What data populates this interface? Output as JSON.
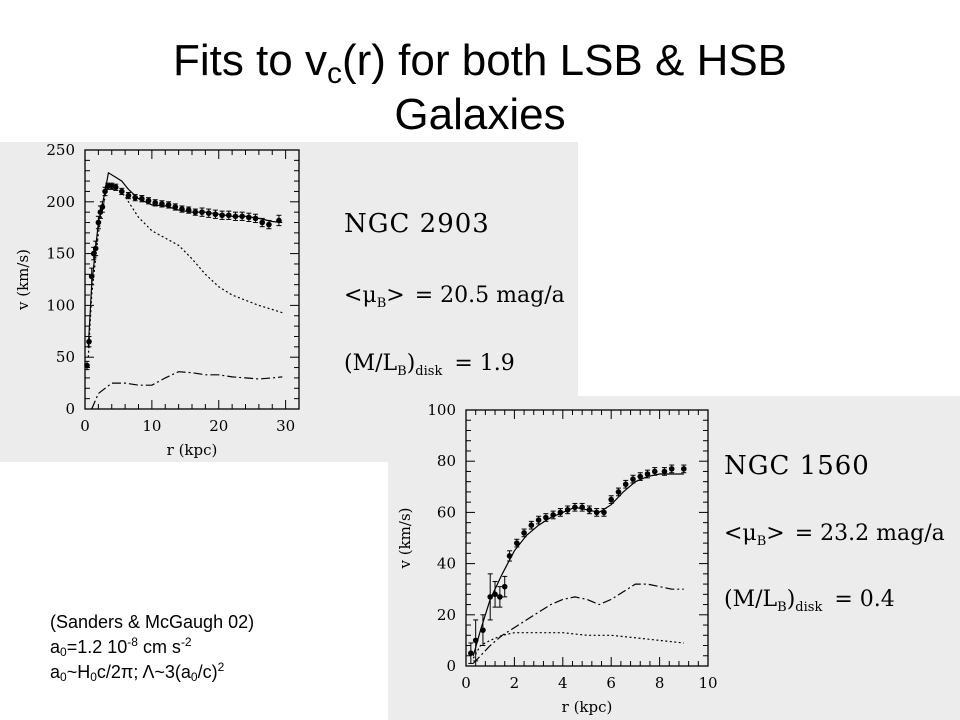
{
  "title": {
    "part1": "Fits to v",
    "sub": "c",
    "part2": "(r) for both LSB & HSB",
    "line2": "Galaxies"
  },
  "note": {
    "citation": "(Sanders & McGaugh 02)",
    "line2": {
      "a": "a",
      "sub0": "0",
      "eq": "=1.2 10",
      "exp1": "-8",
      "unit": " cm s",
      "exp2": "-2"
    },
    "line3": {
      "a": "a",
      "sub0": "0",
      "tilde": "~H",
      "subH": "0",
      "rest": "c/2π; Λ~3(a",
      "sub0b": "0",
      "c": "/c)",
      "exp": "2"
    }
  },
  "chart_data": [
    {
      "type": "scatter",
      "galaxy": "NGC 2903",
      "mu_label": "= 20.5 mag/a",
      "ml_label": "= 1.9",
      "mu_sym": "<μ",
      "mu_sub": "B",
      "mu_close": ">",
      "ml_sym": "(M/L",
      "ml_sub_b": "B",
      "ml_close": ")",
      "ml_sub_disk": "disk",
      "xlabel": "r  (kpc)",
      "ylabel": "v  (km/s)",
      "xlim": [
        0,
        32
      ],
      "ylim": [
        0,
        250
      ],
      "xticks": [
        0,
        10,
        20,
        30
      ],
      "yticks": [
        0,
        50,
        100,
        150,
        200,
        250
      ],
      "points": [
        [
          0.3,
          42,
          4
        ],
        [
          0.6,
          65,
          5
        ],
        [
          1.0,
          128,
          8
        ],
        [
          1.3,
          150,
          6
        ],
        [
          1.6,
          155,
          7
        ],
        [
          2.0,
          180,
          6
        ],
        [
          2.3,
          190,
          6
        ],
        [
          2.6,
          195,
          5
        ],
        [
          3.0,
          210,
          4
        ],
        [
          3.4,
          215,
          3
        ],
        [
          4.0,
          215,
          3
        ],
        [
          4.6,
          214,
          3
        ],
        [
          5.5,
          210,
          3
        ],
        [
          6.5,
          206,
          3
        ],
        [
          7.5,
          204,
          3
        ],
        [
          8.5,
          203,
          3
        ],
        [
          9.5,
          201,
          3
        ],
        [
          10.5,
          199,
          3
        ],
        [
          11.5,
          198,
          3
        ],
        [
          12.5,
          197,
          3
        ],
        [
          13.5,
          195,
          3
        ],
        [
          14.5,
          193,
          3
        ],
        [
          15.5,
          192,
          3
        ],
        [
          16.5,
          190,
          3
        ],
        [
          17.5,
          190,
          4
        ],
        [
          18.5,
          189,
          4
        ],
        [
          19.5,
          188,
          4
        ],
        [
          20.5,
          187,
          4
        ],
        [
          21.5,
          187,
          4
        ],
        [
          22.5,
          186,
          4
        ],
        [
          23.5,
          186,
          4
        ],
        [
          24.5,
          185,
          4
        ],
        [
          25.5,
          184,
          4
        ],
        [
          26.5,
          180,
          4
        ],
        [
          27.5,
          178,
          4
        ],
        [
          29.0,
          182,
          5
        ]
      ],
      "total_curve": [
        [
          0.5,
          60
        ],
        [
          1,
          120
        ],
        [
          2,
          180
        ],
        [
          3,
          210
        ],
        [
          3.5,
          228
        ],
        [
          4.5,
          224
        ],
        [
          5.5,
          220
        ],
        [
          6.5,
          212
        ],
        [
          8,
          203
        ],
        [
          10,
          197
        ],
        [
          12,
          196
        ],
        [
          14,
          192
        ],
        [
          16,
          190
        ],
        [
          18,
          190
        ],
        [
          20,
          188
        ],
        [
          22,
          186
        ],
        [
          24,
          186
        ],
        [
          26,
          184
        ],
        [
          28,
          181
        ],
        [
          29.5,
          180
        ]
      ],
      "disk_curve": [
        [
          0.5,
          50
        ],
        [
          1,
          110
        ],
        [
          2,
          170
        ],
        [
          3,
          205
        ],
        [
          3.5,
          218
        ],
        [
          4.5,
          215
        ],
        [
          6,
          205
        ],
        [
          8,
          185
        ],
        [
          10,
          172
        ],
        [
          12,
          165
        ],
        [
          14,
          158
        ],
        [
          16,
          145
        ],
        [
          18,
          130
        ],
        [
          20,
          118
        ],
        [
          22,
          110
        ],
        [
          24,
          105
        ],
        [
          26,
          100
        ],
        [
          28,
          96
        ],
        [
          29.5,
          93
        ]
      ],
      "gas_curve": [
        [
          1,
          0
        ],
        [
          2,
          15
        ],
        [
          4,
          25
        ],
        [
          6,
          25
        ],
        [
          8,
          23
        ],
        [
          10,
          23
        ],
        [
          12,
          30
        ],
        [
          14,
          36
        ],
        [
          16,
          35
        ],
        [
          18,
          33
        ],
        [
          20,
          33
        ],
        [
          22,
          31
        ],
        [
          24,
          30
        ],
        [
          26,
          29
        ],
        [
          28,
          30
        ],
        [
          29.5,
          31
        ]
      ]
    },
    {
      "type": "scatter",
      "galaxy": "NGC 1560",
      "mu_label": "= 23.2 mag/a",
      "ml_label": "= 0.4",
      "mu_sym": "<μ",
      "mu_sub": "B",
      "mu_close": ">",
      "ml_sym": "(M/L",
      "ml_sub_b": "B",
      "ml_close": ")",
      "ml_sub_disk": "disk",
      "xlabel": "r  (kpc)",
      "ylabel": "v  (km/s)",
      "xlim": [
        0,
        10
      ],
      "ylim": [
        0,
        100
      ],
      "xticks": [
        0,
        2,
        4,
        6,
        8,
        10
      ],
      "yticks": [
        0,
        20,
        40,
        60,
        80,
        100
      ],
      "points": [
        [
          0.2,
          5,
          4
        ],
        [
          0.4,
          10,
          8
        ],
        [
          0.7,
          14,
          6
        ],
        [
          1.0,
          27,
          9
        ],
        [
          1.2,
          28,
          5
        ],
        [
          1.4,
          27,
          4
        ],
        [
          1.6,
          31,
          4
        ],
        [
          1.8,
          43,
          2
        ],
        [
          2.1,
          48,
          1.5
        ],
        [
          2.4,
          52,
          1.5
        ],
        [
          2.7,
          55,
          1.5
        ],
        [
          3.0,
          57,
          1.5
        ],
        [
          3.3,
          58,
          1.5
        ],
        [
          3.6,
          59,
          1.5
        ],
        [
          3.9,
          60,
          1.5
        ],
        [
          4.2,
          61,
          1.5
        ],
        [
          4.5,
          62,
          1.5
        ],
        [
          4.8,
          62,
          1.5
        ],
        [
          5.1,
          61,
          1.5
        ],
        [
          5.4,
          60,
          1.5
        ],
        [
          5.7,
          60,
          1.5
        ],
        [
          6.0,
          65,
          1.5
        ],
        [
          6.3,
          68,
          1.5
        ],
        [
          6.6,
          71,
          1.5
        ],
        [
          6.9,
          73,
          1.5
        ],
        [
          7.2,
          74,
          1.5
        ],
        [
          7.5,
          75,
          1.5
        ],
        [
          7.8,
          76,
          1.5
        ],
        [
          8.2,
          76,
          1.5
        ],
        [
          8.5,
          77,
          1.5
        ],
        [
          9.0,
          77,
          1.5
        ]
      ],
      "total_curve": [
        [
          0.3,
          4
        ],
        [
          0.6,
          14
        ],
        [
          1,
          26
        ],
        [
          1.5,
          36
        ],
        [
          2,
          45
        ],
        [
          2.5,
          51
        ],
        [
          3,
          55
        ],
        [
          3.5,
          58
        ],
        [
          4,
          60
        ],
        [
          4.5,
          62
        ],
        [
          5,
          61
        ],
        [
          5.5,
          60
        ],
        [
          6,
          63
        ],
        [
          6.5,
          68
        ],
        [
          7,
          72
        ],
        [
          7.5,
          74
        ],
        [
          8,
          75
        ],
        [
          8.5,
          75
        ],
        [
          9,
          75
        ]
      ],
      "disk_curve": [
        [
          0.3,
          3
        ],
        [
          0.6,
          8
        ],
        [
          1,
          10
        ],
        [
          1.5,
          12
        ],
        [
          2,
          13
        ],
        [
          3,
          13
        ],
        [
          4,
          13
        ],
        [
          5,
          12
        ],
        [
          6,
          12
        ],
        [
          7,
          11
        ],
        [
          8,
          10
        ],
        [
          9,
          9
        ]
      ],
      "gas_curve": [
        [
          0.3,
          1
        ],
        [
          1,
          8
        ],
        [
          1.5,
          12
        ],
        [
          2,
          15
        ],
        [
          2.5,
          18
        ],
        [
          3,
          21
        ],
        [
          3.5,
          24
        ],
        [
          4,
          26
        ],
        [
          4.5,
          27
        ],
        [
          5,
          26
        ],
        [
          5.5,
          24
        ],
        [
          6,
          26
        ],
        [
          6.5,
          29
        ],
        [
          7,
          32
        ],
        [
          7.5,
          32
        ],
        [
          8,
          31
        ],
        [
          8.5,
          30
        ],
        [
          9,
          30
        ]
      ]
    }
  ]
}
